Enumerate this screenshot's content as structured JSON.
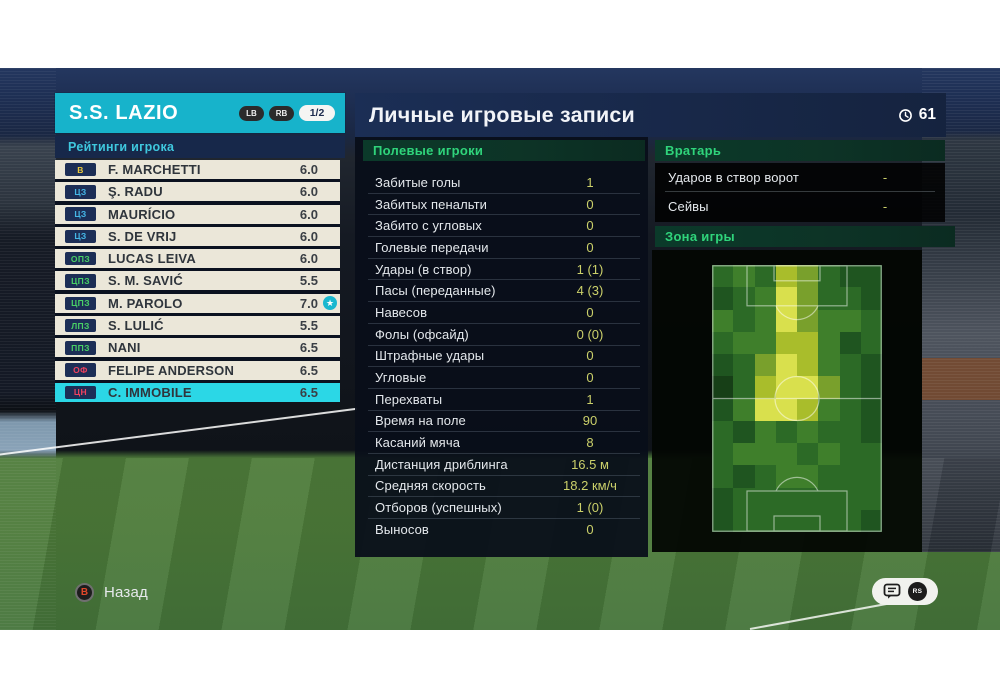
{
  "colors": {
    "accent_teal": "#17b3cb",
    "selected_row": "#2bd7e6",
    "section_green": "#2fd47b",
    "ratings_cyan": "#3fc8de",
    "value_yellow": "#cbd06a",
    "title_navy": "#1a2c50",
    "row_beige": "#ebe7d9",
    "positions": {
      "gk": "#e9c93d",
      "df": "#45b8e8",
      "mf": "#49d166",
      "fw": "#f0415f"
    }
  },
  "team_panel": {
    "team_name": "S.S. LAZIO",
    "lb_label": "LB",
    "rb_label": "RB",
    "page_indicator": "1/2",
    "section_title": "Рейтинги игрока",
    "players": [
      {
        "pos": "В",
        "role": "gk",
        "name": "F. MARCHETTI",
        "rating": "6.0",
        "star": false,
        "selected": false
      },
      {
        "pos": "ЦЗ",
        "role": "df",
        "name": "Ş. RADU",
        "rating": "6.0",
        "star": false,
        "selected": false
      },
      {
        "pos": "ЦЗ",
        "role": "df",
        "name": "MAURÍCIO",
        "rating": "6.0",
        "star": false,
        "selected": false
      },
      {
        "pos": "ЦЗ",
        "role": "df",
        "name": "S. DE VRIJ",
        "rating": "6.0",
        "star": false,
        "selected": false
      },
      {
        "pos": "ОПЗ",
        "role": "mf",
        "name": "LUCAS LEIVA",
        "rating": "6.0",
        "star": false,
        "selected": false
      },
      {
        "pos": "ЦПЗ",
        "role": "mf",
        "name": "S. M. SAVIĆ",
        "rating": "5.5",
        "star": false,
        "selected": false
      },
      {
        "pos": "ЦПЗ",
        "role": "mf",
        "name": "M. PAROLO",
        "rating": "7.0",
        "star": true,
        "selected": false
      },
      {
        "pos": "ЛПЗ",
        "role": "mf",
        "name": "S. LULIĆ",
        "rating": "5.5",
        "star": false,
        "selected": false
      },
      {
        "pos": "ППЗ",
        "role": "mf",
        "name": "NANI",
        "rating": "6.5",
        "star": false,
        "selected": false
      },
      {
        "pos": "ОФ",
        "role": "fw",
        "name": "FELIPE ANDERSON",
        "rating": "6.5",
        "star": false,
        "selected": false
      },
      {
        "pos": "ЦН",
        "role": "fw",
        "name": "C. IMMOBILE",
        "rating": "6.5",
        "star": false,
        "selected": true
      }
    ]
  },
  "main": {
    "title": "Личные игровые записи",
    "match_minute": "61",
    "field_players": {
      "section_title": "Полевые игроки",
      "stats": [
        {
          "label": "Забитые голы",
          "value": "1"
        },
        {
          "label": "Забитых пенальти",
          "value": "0"
        },
        {
          "label": "Забито с угловых",
          "value": "0"
        },
        {
          "label": "Голевые передачи",
          "value": "0"
        },
        {
          "label": "Удары (в створ)",
          "value": "1 (1)"
        },
        {
          "label": "Пасы (переданные)",
          "value": "4 (3)"
        },
        {
          "label": "Навесов",
          "value": "0"
        },
        {
          "label": "Фолы (офсайд)",
          "value": "0 (0)"
        },
        {
          "label": "Штрафные удары",
          "value": "0"
        },
        {
          "label": "Угловые",
          "value": "0"
        },
        {
          "label": "Перехваты",
          "value": "1"
        },
        {
          "label": "Время на поле",
          "value": "90"
        },
        {
          "label": "Касаний мяча",
          "value": "8"
        },
        {
          "label": "Дистанция дриблинга",
          "value": "16.5 м"
        },
        {
          "label": "Средняя скорость",
          "value": "18.2 км/ч"
        },
        {
          "label": "Отборов (успешных)",
          "value": "1 (0)"
        },
        {
          "label": "Выносов",
          "value": "0"
        }
      ]
    },
    "goalkeeper": {
      "section_title": "Вратарь",
      "stats": [
        {
          "label": "Ударов в створ ворот",
          "value": "-"
        },
        {
          "label": "Сейвы",
          "value": "-"
        }
      ]
    },
    "zone": {
      "section_title": "Зона игры",
      "heatmap": {
        "type": "heatmap",
        "rows": 12,
        "cols": 8,
        "palette": {
          "0": "#173f17",
          "1": "#1f5520",
          "2": "#2c6a26",
          "3": "#3f7f2b",
          "4": "#79a02c",
          "5": "#a9bd2b",
          "6": "#d9e04d"
        },
        "grid": [
          [
            2,
            3,
            2,
            5,
            4,
            2,
            1,
            1
          ],
          [
            1,
            2,
            3,
            6,
            4,
            2,
            2,
            1
          ],
          [
            3,
            2,
            3,
            6,
            4,
            3,
            3,
            2
          ],
          [
            2,
            3,
            3,
            5,
            5,
            3,
            1,
            2
          ],
          [
            1,
            2,
            4,
            6,
            5,
            3,
            2,
            1
          ],
          [
            0,
            2,
            5,
            6,
            6,
            4,
            2,
            1
          ],
          [
            1,
            3,
            6,
            6,
            5,
            3,
            2,
            1
          ],
          [
            2,
            1,
            3,
            2,
            3,
            2,
            2,
            1
          ],
          [
            2,
            3,
            3,
            3,
            2,
            3,
            2,
            2
          ],
          [
            2,
            1,
            2,
            3,
            3,
            2,
            2,
            2
          ],
          [
            1,
            2,
            2,
            2,
            2,
            2,
            2,
            2
          ],
          [
            1,
            2,
            2,
            2,
            2,
            2,
            2,
            1
          ]
        ]
      }
    }
  },
  "footer": {
    "back_button_glyph": "B",
    "back_label": "Назад",
    "rs_label": "RS"
  }
}
